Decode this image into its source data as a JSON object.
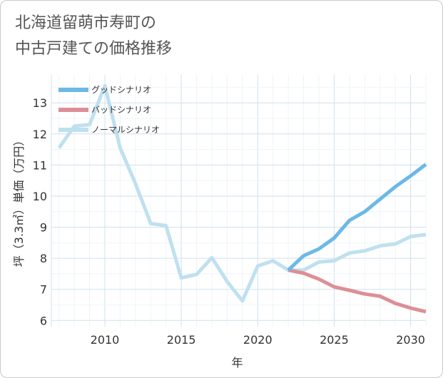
{
  "chart_data": {
    "type": "line",
    "title_lines": [
      "北海道留萌市寿町の",
      "中古戸建ての価格推移"
    ],
    "xlabel": "年",
    "ylabel": "坪（3.3㎡）単価（万円）",
    "xlim": [
      2006.5,
      2031
    ],
    "ylim": [
      5.8,
      13.9
    ],
    "xticks": [
      2010,
      2015,
      2020,
      2025,
      2030
    ],
    "yticks": [
      6,
      7,
      8,
      9,
      10,
      11,
      12,
      13
    ],
    "legend_position": "top-left",
    "series": [
      {
        "name": "グッドシナリオ",
        "color": "#6cb8e8",
        "x": [
          2022,
          2023,
          2024,
          2025,
          2026,
          2027,
          2028,
          2029,
          2030,
          2031
        ],
        "y": [
          7.62,
          8.08,
          8.3,
          8.65,
          9.22,
          9.5,
          9.9,
          10.3,
          10.65,
          11.02
        ]
      },
      {
        "name": "バッドシナリオ",
        "color": "#dd8f96",
        "x": [
          2022,
          2023,
          2024,
          2025,
          2026,
          2027,
          2028,
          2029,
          2030,
          2031
        ],
        "y": [
          7.62,
          7.52,
          7.33,
          7.08,
          6.97,
          6.85,
          6.78,
          6.55,
          6.4,
          6.28
        ]
      },
      {
        "name": "ノーマルシナリオ",
        "color": "#bfe0ef",
        "x": [
          2007,
          2008,
          2009,
          2010,
          2011,
          2012,
          2013,
          2014,
          2015,
          2016,
          2017,
          2018,
          2019,
          2020,
          2021,
          2022,
          2023,
          2024,
          2025,
          2026,
          2027,
          2028,
          2029,
          2030,
          2031
        ],
        "y": [
          11.55,
          12.25,
          12.3,
          13.55,
          11.55,
          10.4,
          9.12,
          9.05,
          7.37,
          7.48,
          8.02,
          7.25,
          6.63,
          7.75,
          7.92,
          7.62,
          7.62,
          7.88,
          7.92,
          8.17,
          8.24,
          8.4,
          8.46,
          8.7,
          8.76
        ]
      }
    ]
  }
}
